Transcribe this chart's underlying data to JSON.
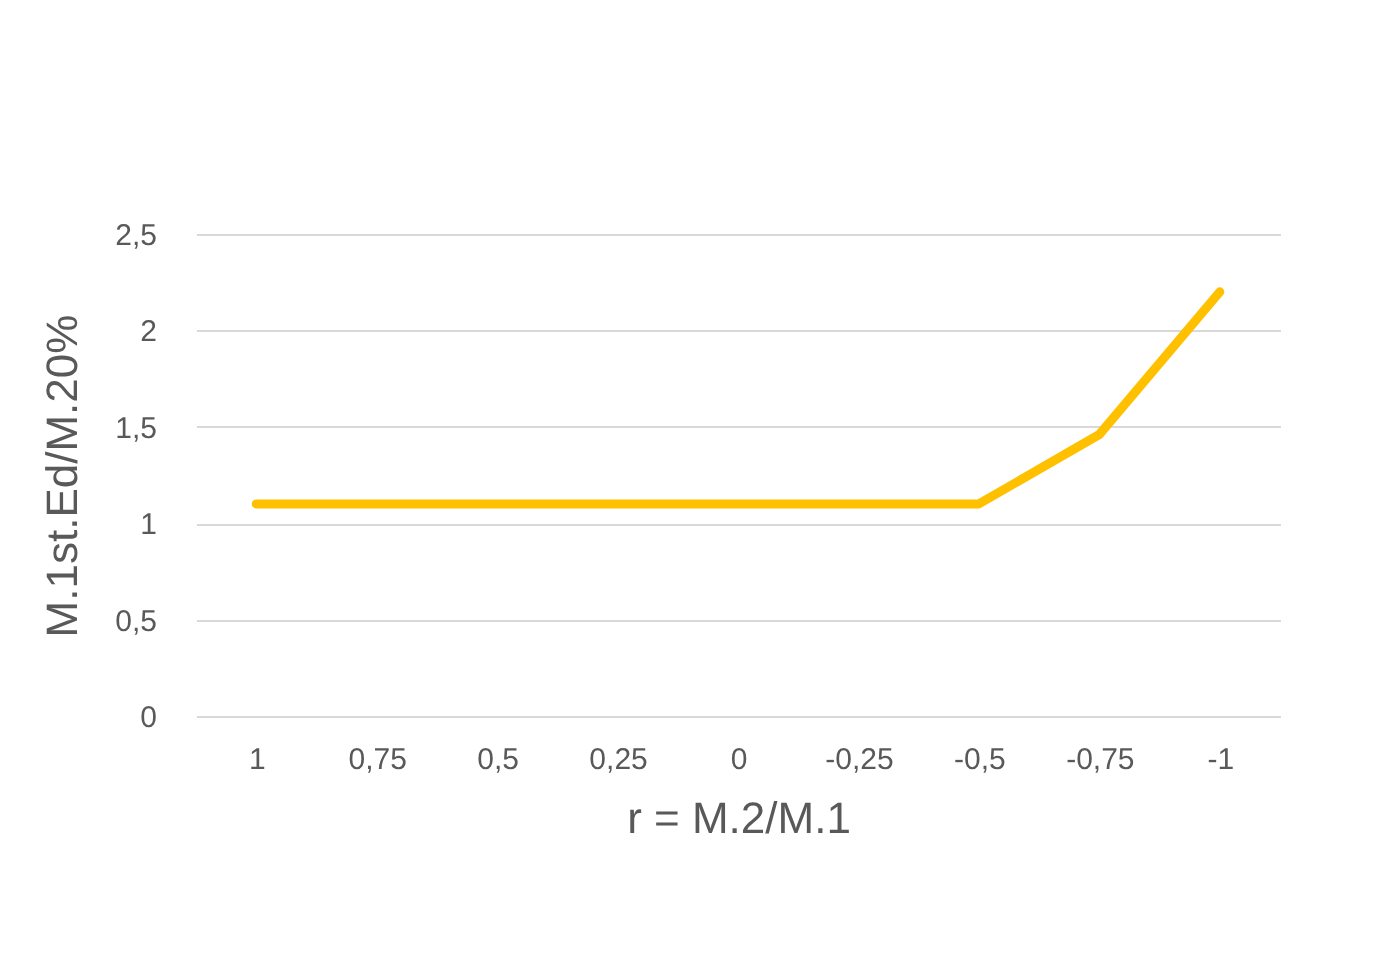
{
  "chart_data": {
    "type": "line",
    "xlabel": "r = M.2/M.1",
    "ylabel": "M.1st.Ed/M.20%",
    "categories": [
      "1",
      "0,75",
      "0,5",
      "0,25",
      "0",
      "-0,25",
      "-0,5",
      "-0,75",
      "-1"
    ],
    "series": [
      {
        "color": "#ffc000",
        "values": [
          1.1,
          1.1,
          1.1,
          1.1,
          1.1,
          1.1,
          1.1,
          1.46,
          2.2
        ]
      }
    ],
    "ylim": [
      0,
      2.5
    ],
    "yticks": [
      0,
      {
        "value": 0.5,
        "label": "0,5"
      },
      1,
      {
        "value": 1.5,
        "label": "1,5"
      },
      2,
      {
        "value": 2.5,
        "label": "2,5"
      }
    ],
    "grid": "y",
    "legend": false,
    "marker": "none",
    "line_style": "solid"
  }
}
